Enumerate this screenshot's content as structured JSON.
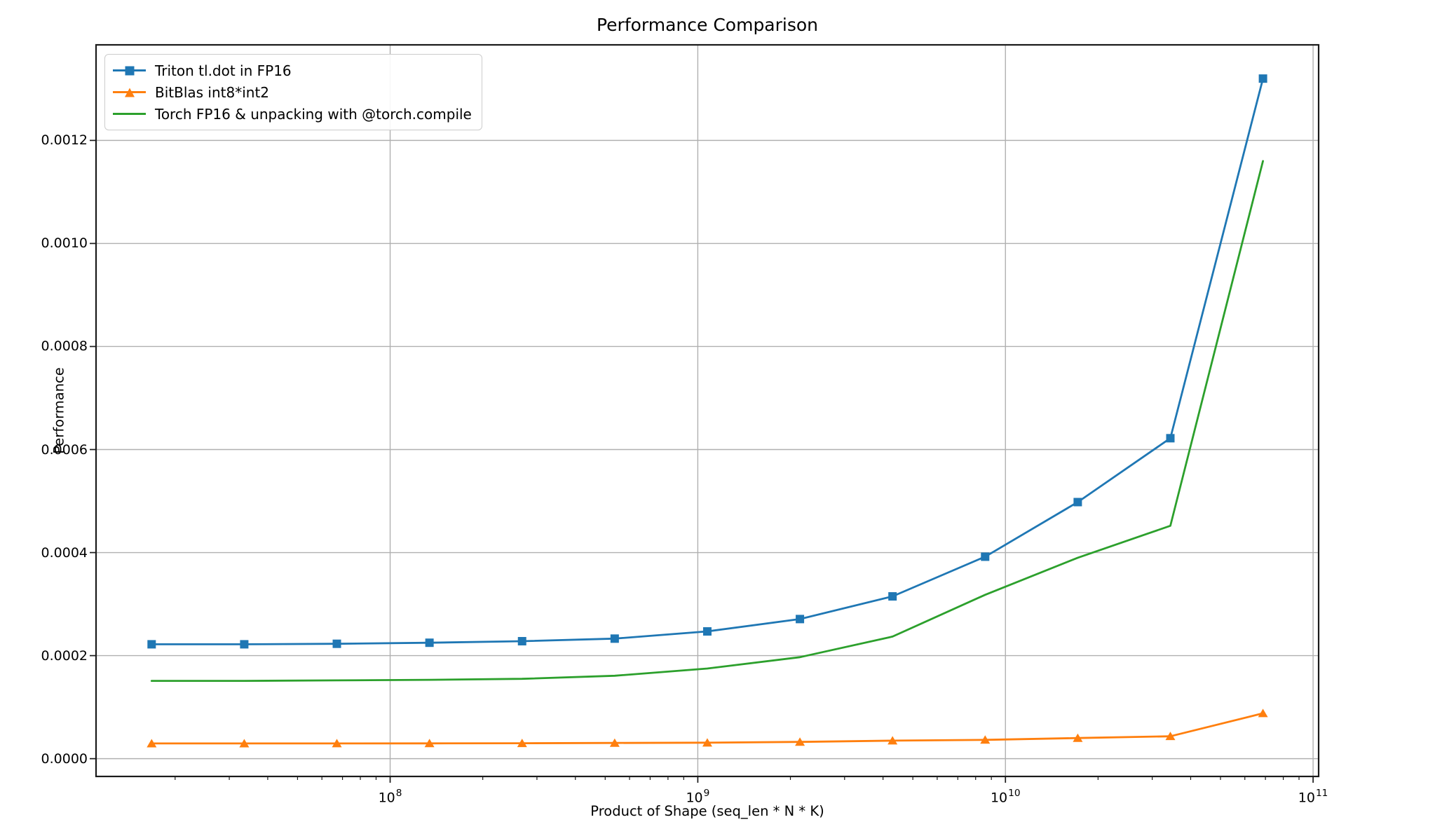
{
  "chart_data": {
    "type": "line",
    "title": "Performance Comparison",
    "xlabel": "Product of Shape (seq_len * N * K)",
    "ylabel": "Performance",
    "x_scale": "log",
    "grid": true,
    "legend_position": "upper-left",
    "x": [
      16777216,
      33554432,
      67108864,
      134217728,
      268435456,
      536870912,
      1073741824,
      2147483648,
      4294967296,
      8589934592,
      17179869184,
      34359738368,
      68719476736
    ],
    "series": [
      {
        "name": "Triton tl.dot in FP16",
        "color": "#1f77b4",
        "marker": "square",
        "values": [
          0.000222,
          0.000222,
          0.000223,
          0.000225,
          0.000228,
          0.000233,
          0.000247,
          0.000271,
          0.000315,
          0.000392,
          0.000498,
          0.000622,
          0.00132
        ]
      },
      {
        "name": "BitBlas int8*int2",
        "color": "#ff7f0e",
        "marker": "triangle",
        "values": [
          2.95e-05,
          2.95e-05,
          2.96e-05,
          2.97e-05,
          3e-05,
          3.05e-05,
          3.1e-05,
          3.25e-05,
          3.5e-05,
          3.65e-05,
          4e-05,
          4.35e-05,
          8.8e-05
        ]
      },
      {
        "name": "Torch FP16 & unpacking with @torch.compile",
        "color": "#2ca02c",
        "marker": "none",
        "values": [
          0.000151,
          0.000151,
          0.000152,
          0.000153,
          0.000155,
          0.000161,
          0.000175,
          0.000197,
          0.000237,
          0.000318,
          0.00039,
          0.000452,
          0.00116
        ]
      }
    ],
    "xlim_log": [
      7.044,
      11.018
    ],
    "ylim": [
      -3.45e-05,
      0.0013855
    ],
    "yticks": [
      0.0,
      0.0002,
      0.0004,
      0.0006,
      0.0008,
      0.001,
      0.0012
    ],
    "ytick_labels": [
      "0.0000",
      "0.0002",
      "0.0004",
      "0.0006",
      "0.0008",
      "0.0010",
      "0.0012"
    ],
    "xticks_log": [
      8,
      9,
      10,
      11
    ],
    "xtick_labels": [
      "10^8",
      "10^9",
      "10^10",
      "10^11"
    ],
    "colors": {
      "grid": "#b0b0b0",
      "spine": "#1a1a1a",
      "tick": "#1a1a1a",
      "background": "#ffffff",
      "legend_border": "#cccccc"
    }
  }
}
